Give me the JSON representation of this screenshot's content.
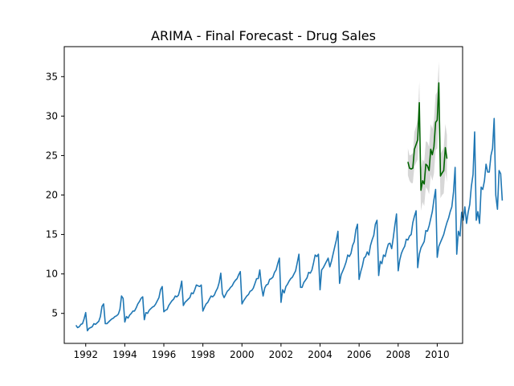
{
  "chart_data": {
    "type": "line",
    "title": "ARIMA - Final Forecast - Drug Sales",
    "xlabel": "",
    "ylabel": "",
    "xlim": [
      1990.9,
      2011.3
    ],
    "ylim": [
      1.2,
      38.8
    ],
    "x_ticks": [
      1992,
      1994,
      1996,
      1998,
      2000,
      2002,
      2004,
      2006,
      2008,
      2010
    ],
    "x_tick_labels": [
      "1992",
      "1994",
      "1996",
      "1998",
      "2000",
      "2002",
      "2004",
      "2006",
      "2008",
      "2010"
    ],
    "y_ticks": [
      5,
      10,
      15,
      20,
      25,
      30,
      35
    ],
    "y_tick_labels": [
      "5",
      "10",
      "15",
      "20",
      "25",
      "30",
      "35"
    ],
    "grid": false,
    "legend": null,
    "series": [
      {
        "color": "#1f77b4",
        "kind": "line",
        "start": "1991-07",
        "frequency": "monthly",
        "values": [
          3.5,
          3.2,
          3.3,
          3.6,
          3.7,
          4.3,
          5.1,
          2.8,
          3.1,
          3.2,
          3.3,
          3.7,
          3.6,
          3.8,
          4.0,
          4.6,
          5.9,
          6.2,
          3.7,
          3.7,
          3.9,
          4.1,
          4.3,
          4.4,
          4.6,
          4.7,
          4.9,
          5.5,
          7.2,
          6.9,
          3.9,
          4.6,
          4.4,
          4.8,
          5.0,
          5.3,
          5.3,
          5.7,
          6.2,
          6.5,
          6.9,
          7.1,
          4.2,
          5.1,
          5.0,
          5.4,
          5.6,
          5.8,
          5.9,
          6.2,
          6.6,
          7.0,
          8.0,
          8.4,
          5.2,
          5.4,
          5.5,
          6.0,
          6.3,
          6.6,
          6.8,
          7.2,
          7.1,
          7.3,
          8.1,
          9.1,
          6.0,
          6.4,
          6.6,
          6.8,
          7.0,
          7.6,
          7.5,
          8.0,
          8.6,
          8.5,
          8.4,
          8.6,
          5.3,
          5.8,
          6.2,
          6.4,
          6.8,
          7.2,
          7.1,
          7.3,
          7.8,
          8.2,
          8.9,
          10.1,
          7.5,
          7.0,
          7.4,
          7.8,
          8.0,
          8.3,
          8.5,
          8.9,
          9.2,
          9.4,
          9.9,
          10.3,
          6.2,
          6.6,
          6.9,
          7.2,
          7.4,
          7.8,
          7.9,
          8.2,
          8.8,
          9.4,
          9.4,
          10.5,
          8.4,
          7.2,
          8.2,
          8.6,
          8.7,
          9.3,
          9.4,
          9.6,
          10.2,
          10.5,
          11.3,
          12.0,
          6.4,
          8.0,
          7.6,
          8.4,
          8.7,
          9.1,
          9.4,
          9.6,
          10.0,
          10.4,
          11.4,
          12.5,
          8.3,
          8.3,
          8.9,
          9.2,
          9.5,
          10.2,
          10.1,
          10.5,
          11.4,
          12.4,
          12.2,
          12.5,
          8.0,
          10.5,
          10.8,
          11.2,
          11.6,
          12.0,
          10.9,
          11.6,
          12.5,
          13.4,
          14.3,
          15.4,
          8.8,
          9.9,
          10.4,
          10.9,
          11.5,
          12.4,
          12.2,
          12.6,
          13.6,
          14.1,
          15.6,
          16.3,
          9.3,
          10.3,
          11.0,
          12.0,
          12.2,
          12.8,
          12.4,
          13.6,
          14.3,
          14.9,
          16.3,
          16.8,
          9.8,
          11.6,
          11.3,
          12.4,
          12.2,
          13.1,
          13.8,
          13.9,
          13.2,
          14.6,
          16.2,
          17.6,
          10.4,
          11.8,
          12.6,
          13.1,
          13.5,
          14.4,
          14.3,
          14.8,
          15.0,
          16.5,
          17.3,
          18.0,
          10.8,
          12.5,
          13.3,
          13.7,
          14.1,
          15.5,
          15.4,
          16.1,
          17.0,
          17.9,
          19.4,
          20.7,
          12.1,
          13.5,
          14.0,
          14.5,
          15.0,
          15.8,
          16.5,
          17.1,
          17.9,
          18.5,
          20.4,
          23.5,
          12.5,
          15.4,
          14.8,
          17.8,
          16.8,
          18.5,
          16.4,
          17.8,
          18.8,
          21.1,
          22.6,
          28.0,
          16.8,
          17.9,
          16.4,
          21.0,
          20.7,
          21.8,
          23.9,
          22.9,
          22.9,
          25.0,
          25.9,
          29.7,
          20.0,
          18.2,
          23.1,
          22.7,
          19.3
        ]
      },
      {
        "color": "#006400",
        "kind": "forecast",
        "start": "2008-07",
        "frequency": "monthly",
        "values": [
          24.2,
          23.4,
          23.3,
          23.4,
          25.8,
          26.4,
          27.0,
          31.7,
          20.6,
          21.8,
          21.4,
          23.9,
          23.7,
          23.1,
          25.8,
          25.1,
          26.1,
          29.2,
          29.5,
          34.2,
          22.4,
          22.8,
          23.1,
          26.0,
          24.6
        ]
      },
      {
        "color": "#d3d3d3",
        "kind": "confidence_band",
        "start": "2008-07",
        "frequency": "monthly",
        "lower": [
          22.5,
          21.8,
          21.5,
          21.5,
          23.6,
          24.1,
          24.5,
          29.0,
          18.0,
          19.1,
          18.6,
          21.0,
          20.7,
          20.1,
          22.6,
          21.8,
          22.7,
          25.7,
          25.9,
          30.5,
          19.6,
          20.0,
          20.2,
          23.0,
          21.6
        ],
        "upper": [
          25.9,
          25.0,
          25.1,
          25.3,
          28.0,
          28.7,
          29.5,
          34.4,
          23.2,
          24.5,
          24.2,
          26.8,
          26.7,
          26.1,
          29.0,
          28.4,
          29.5,
          32.7,
          33.1,
          36.9,
          25.2,
          25.6,
          26.0,
          29.0,
          27.6
        ]
      }
    ]
  }
}
